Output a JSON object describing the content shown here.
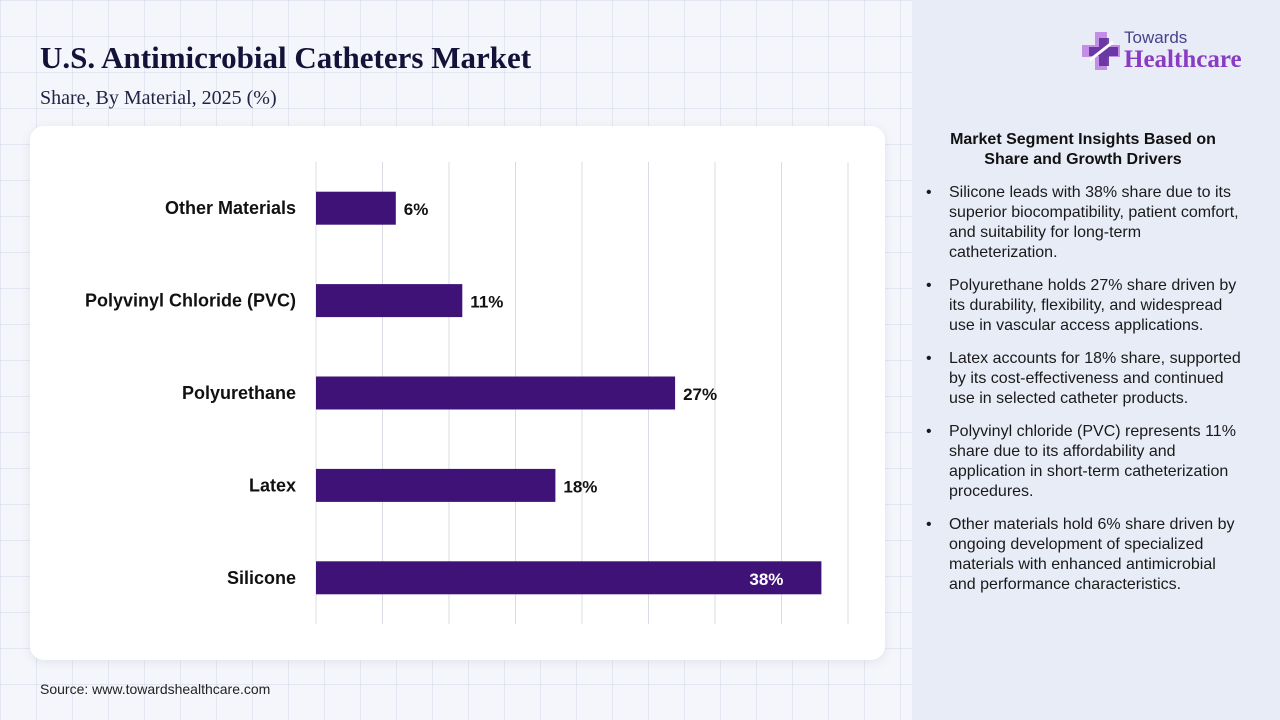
{
  "header": {
    "title": "U.S. Antimicrobial Catheters Market",
    "subtitle": "Share, By Material, 2025 (%)"
  },
  "logo": {
    "top_text": "Towards",
    "main_text": "Healthcare",
    "icon": "medical-cross-icon",
    "colors": {
      "cross_light": "#b86de0",
      "cross_dark": "#5b2a9a",
      "text": "#8a3bc4"
    }
  },
  "chart_data": {
    "type": "bar",
    "orientation": "horizontal",
    "categories": [
      "Other Materials",
      "Polyvinyl Chloride (PVC)",
      "Polyurethane",
      "Latex",
      "Silicone"
    ],
    "values": [
      6,
      11,
      27,
      18,
      38
    ],
    "value_labels": [
      "6%",
      "11%",
      "27%",
      "18%",
      "38%"
    ],
    "unit": "%",
    "xlim": [
      0,
      40
    ],
    "grid": true,
    "legend": "none",
    "colors": {
      "bar": "#3f1278",
      "label_outside": "#111111",
      "label_inside": "#ffffff",
      "grid": "#d9dce3"
    }
  },
  "insights": {
    "title": "Market Segment Insights Based on Share and Growth Drivers",
    "items": [
      "Silicone leads with 38% share due to its superior biocompatibility, patient comfort, and suitability for long-term catheterization.",
      "Polyurethane holds 27% share driven by its durability, flexibility, and widespread use in vascular access applications.",
      "Latex accounts for 18% share, supported by its cost-effectiveness and continued use in selected catheter products.",
      "Polyvinyl chloride (PVC) represents 11% share due to its affordability and application in short-term catheterization procedures.",
      "Other materials hold 6% share driven by ongoing development of specialized materials with enhanced antimicrobial and performance characteristics."
    ]
  },
  "source": "Source: www.towardshealthcare.com"
}
